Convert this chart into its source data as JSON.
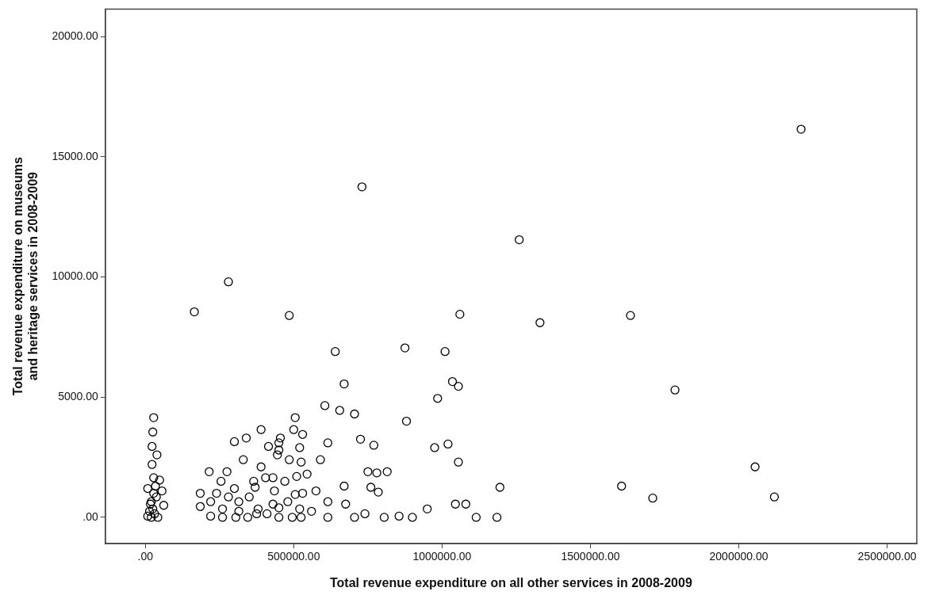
{
  "chart_data": {
    "type": "scatter",
    "xlabel": "Total revenue expenditure on all other services in 2008-2009",
    "ylabel": "Total revenue expenditure on museums and heritage services in 2008-2009",
    "xlim": [
      -135000,
      2600000
    ],
    "ylim": [
      -1090,
      21150
    ],
    "xticks": [
      {
        "value": 0,
        "label": ".00"
      },
      {
        "value": 500000,
        "label": "500000.00"
      },
      {
        "value": 1000000,
        "label": "1000000.00"
      },
      {
        "value": 1500000,
        "label": "1500000.00"
      },
      {
        "value": 2000000,
        "label": "2000000.00"
      },
      {
        "value": 2500000,
        "label": "2500000.00"
      }
    ],
    "yticks": [
      {
        "value": 0,
        "label": ".00"
      },
      {
        "value": 5000,
        "label": "5000.00"
      },
      {
        "value": 10000,
        "label": "10000.00"
      },
      {
        "value": 15000,
        "label": "15000.00"
      },
      {
        "value": 20000,
        "label": "20000.00"
      }
    ],
    "grid": false,
    "legend": false,
    "marker": "circle",
    "series": [
      {
        "color": "#000000",
        "x": [
          28000,
          25000,
          22500,
          39000,
          22500,
          28000,
          34000,
          56000,
          28000,
          20000,
          62000,
          25000,
          20000,
          42000,
          8000,
          14000,
          37000,
          31000,
          17000,
          48000,
          8000,
          640000,
          670000,
          605000,
          655000,
          705000,
          505000,
          390000,
          500000,
          530000,
          300000,
          340000,
          455000,
          415000,
          520000,
          615000,
          450000,
          450000,
          445000,
          485000,
          525000,
          590000,
          330000,
          390000,
          215000,
          275000,
          255000,
          510000,
          545000,
          470000,
          365000,
          405000,
          430000,
          670000,
          185000,
          240000,
          300000,
          370000,
          435000,
          575000,
          530000,
          505000,
          280000,
          315000,
          350000,
          220000,
          185000,
          430000,
          480000,
          615000,
          675000,
          260000,
          315000,
          380000,
          450000,
          520000,
          560000,
          220000,
          260000,
          305000,
          345000,
          375000,
          410000,
          450000,
          495000,
          525000,
          615000,
          705000,
          875000,
          1010000,
          1035000,
          1055000,
          985000,
          880000,
          725000,
          770000,
          975000,
          1020000,
          1055000,
          750000,
          780000,
          815000,
          760000,
          785000,
          1195000,
          950000,
          1045000,
          1080000,
          740000,
          805000,
          855000,
          900000,
          1115000,
          1185000,
          730000,
          1260000,
          280000,
          165000,
          485000,
          1060000,
          1330000,
          2210000,
          1635000,
          1785000,
          2055000,
          1605000,
          1710000,
          2120000
        ],
        "values": [
          4150,
          3550,
          2950,
          2600,
          2200,
          1650,
          1300,
          1100,
          1000,
          650,
          500,
          350,
          0,
          0,
          50,
          250,
          850,
          150,
          550,
          1550,
          1200,
          6900,
          5550,
          4650,
          4450,
          4300,
          4150,
          3650,
          3650,
          3450,
          3150,
          3300,
          3300,
          2950,
          2900,
          3100,
          3100,
          2800,
          2600,
          2400,
          2300,
          2400,
          2400,
          2100,
          1900,
          1900,
          1500,
          1700,
          1800,
          1500,
          1500,
          1650,
          1650,
          1300,
          1000,
          1000,
          1200,
          1250,
          1100,
          1100,
          1000,
          950,
          850,
          650,
          850,
          650,
          450,
          550,
          650,
          650,
          550,
          350,
          250,
          350,
          400,
          350,
          250,
          50,
          0,
          0,
          0,
          150,
          150,
          0,
          0,
          0,
          0,
          0,
          7050,
          6900,
          5650,
          5450,
          4950,
          4000,
          3250,
          3000,
          2900,
          3050,
          2300,
          1900,
          1850,
          1900,
          1250,
          1050,
          1250,
          350,
          550,
          550,
          150,
          0,
          50,
          0,
          0,
          0,
          13750,
          11550,
          9800,
          8550,
          8400,
          8450,
          8100,
          16150,
          8400,
          5300,
          2100,
          1300,
          800,
          850
        ]
      }
    ]
  }
}
